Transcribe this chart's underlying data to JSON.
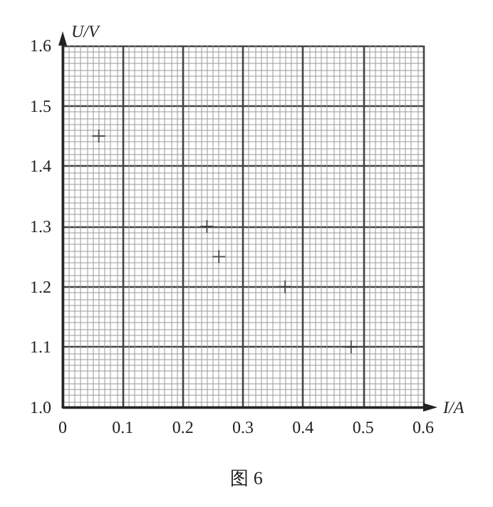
{
  "chart_data": {
    "type": "scatter",
    "x": [
      0.06,
      0.24,
      0.26,
      0.37,
      0.48
    ],
    "values": [
      1.45,
      1.3,
      1.25,
      1.2,
      1.1
    ],
    "color": "#333333",
    "marker": "cross",
    "xlabel": "I/A",
    "ylabel": "U/V",
    "xlim": [
      0,
      0.6
    ],
    "xticks": [
      0,
      0.1,
      0.2,
      0.3,
      0.4,
      0.5,
      0.6
    ],
    "ylim": [
      1.0,
      1.6
    ],
    "yticks": [
      {
        "value": 1.0,
        "label": "1.0"
      },
      1.1,
      1.2,
      1.3,
      1.4,
      1.5,
      1.6
    ],
    "grid": true,
    "annotations": [
      "图 6"
    ]
  }
}
